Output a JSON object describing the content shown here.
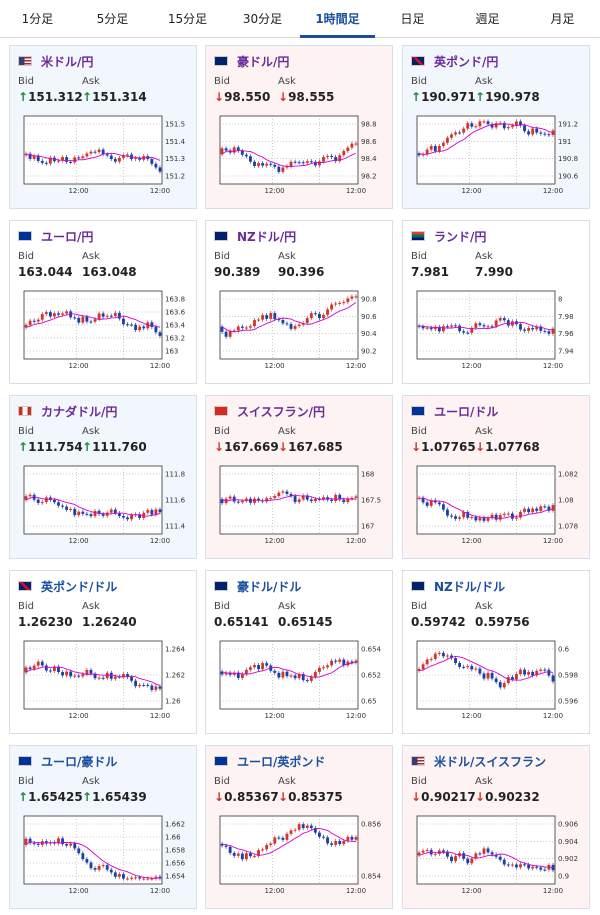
{
  "tabs": [
    {
      "label": "1分足",
      "active": false
    },
    {
      "label": "5分足",
      "active": false
    },
    {
      "label": "15分足",
      "active": false
    },
    {
      "label": "30分足",
      "active": false
    },
    {
      "label": "1時間足",
      "active": true
    },
    {
      "label": "日足",
      "active": false
    },
    {
      "label": "週足",
      "active": false
    },
    {
      "label": "月足",
      "active": false
    }
  ],
  "labels": {
    "bid": "Bid",
    "ask": "Ask"
  },
  "colors": {
    "up": "#1a8a3a",
    "down": "#d0362c",
    "accent": "#1a4fa0",
    "pair": "#6a2b99",
    "ma": "#d300d3",
    "candle_up": "#d0362c",
    "candle_down": "#1a3fa8"
  },
  "cards": [
    {
      "pair": "米ドル/円",
      "flag": "us-icon",
      "trend": "up",
      "bid": "151.312",
      "ask": "151.314",
      "x_label": "12:00",
      "x_label2": "12:00",
      "y_ticks": [
        "151.5",
        "151.4",
        "151.3",
        "151.2"
      ],
      "ylim": [
        151.15,
        151.6
      ]
    },
    {
      "pair": "豪ドル/円",
      "flag": "au-icon",
      "trend": "down",
      "bid": "98.550",
      "ask": "98.555",
      "x_label": "12:00",
      "x_label2": "12:00",
      "y_ticks": [
        "98.8",
        "98.6",
        "98.4",
        "98.2"
      ],
      "ylim": [
        98.1,
        98.9
      ]
    },
    {
      "pair": "英ポンド/円",
      "flag": "gb-icon",
      "trend": "up",
      "bid": "190.971",
      "ask": "190.978",
      "x_label": "12:00",
      "x_label2": "12:00",
      "y_ticks": [
        "191.2",
        "191",
        "190.8",
        "190.6"
      ],
      "ylim": [
        190.5,
        191.3
      ]
    },
    {
      "pair": "ユーロ/円",
      "flag": "eu-icon",
      "trend": "flat",
      "bid": "163.044",
      "ask": "163.048",
      "x_label": "12:00",
      "x_label2": "12:00",
      "y_ticks": [
        "163.8",
        "163.6",
        "163.4",
        "163.2",
        "163"
      ],
      "ylim": [
        162.95,
        163.9
      ]
    },
    {
      "pair": "NZドル/円",
      "flag": "nz-icon",
      "trend": "flat",
      "bid": "90.389",
      "ask": "90.396",
      "x_label": "12:00",
      "x_label2": "12:00",
      "y_ticks": [
        "90.8",
        "90.6",
        "90.4",
        "90.2"
      ],
      "ylim": [
        90.1,
        90.9
      ]
    },
    {
      "pair": "ランド/円",
      "flag": "za-icon",
      "trend": "flat",
      "bid": "7.981",
      "ask": "7.990",
      "x_label": "12:00",
      "x_label2": "12:00",
      "y_ticks": [
        "8",
        "7.98",
        "7.96",
        "7.94"
      ],
      "ylim": [
        7.92,
        8.01
      ]
    },
    {
      "pair": "カナダドル/円",
      "flag": "ca-icon",
      "trend": "up",
      "bid": "111.754",
      "ask": "111.760",
      "x_label": "12:00",
      "x_label2": "12:00",
      "y_ticks": [
        "111.8",
        "111.6",
        "111.4"
      ],
      "ylim": [
        111.25,
        111.9
      ]
    },
    {
      "pair": "スイスフラン/円",
      "flag": "ch-icon",
      "trend": "down",
      "bid": "167.669",
      "ask": "167.685",
      "x_label": "12:00",
      "x_label2": "12:00",
      "y_ticks": [
        "168",
        "167.5",
        "167"
      ],
      "ylim": [
        166.85,
        168.1
      ]
    },
    {
      "pair": "ユーロ/ドル",
      "flag": "eu-icon",
      "trend": "down",
      "bid": "1.07765",
      "ask": "1.07768",
      "x_label": "12:00",
      "x_label2": "12:00",
      "y_ticks": [
        "1.082",
        "1.08",
        "1.078"
      ],
      "ylim": [
        1.0772,
        1.0835
      ]
    },
    {
      "pair": "英ポンド/ドル",
      "flag": "gb-icon",
      "trend": "flat",
      "bid": "1.26230",
      "ask": "1.26240",
      "x_label": "12:00",
      "x_label2": "12:00",
      "y_ticks": [
        "1.264",
        "1.262",
        "1.26"
      ],
      "ylim": [
        1.2592,
        1.2655
      ]
    },
    {
      "pair": "豪ドル/ドル",
      "flag": "au-icon",
      "trend": "flat",
      "bid": "0.65141",
      "ask": "0.65145",
      "x_label": "12:00",
      "x_label2": "12:00",
      "y_ticks": [
        "0.654",
        "0.652",
        "0.65"
      ],
      "ylim": [
        0.6488,
        0.6545
      ]
    },
    {
      "pair": "NZドル/ドル",
      "flag": "nz-icon",
      "trend": "flat",
      "bid": "0.59742",
      "ask": "0.59756",
      "x_label": "12:00",
      "x_label2": "12:00",
      "y_ticks": [
        "0.6",
        "0.598",
        "0.596"
      ],
      "ylim": [
        0.5955,
        0.6005
      ]
    },
    {
      "pair": "ユーロ/豪ドル",
      "flag": "eu-icon",
      "trend": "up",
      "bid": "1.65425",
      "ask": "1.65439",
      "x_label": "12:00",
      "x_label2": "12:00",
      "y_ticks": [
        "1.662",
        "1.66",
        "1.658",
        "1.656",
        "1.654"
      ],
      "ylim": [
        1.6535,
        1.6625
      ]
    },
    {
      "pair": "ユーロ/英ポンド",
      "flag": "eu-icon",
      "trend": "down",
      "bid": "0.85367",
      "ask": "0.85375",
      "x_label": "12:00",
      "x_label2": "12:00",
      "y_ticks": [
        "0.856",
        "0.854"
      ],
      "ylim": [
        0.8535,
        0.8575
      ]
    },
    {
      "pair": "米ドル/スイスフラン",
      "flag": "us-icon",
      "trend": "down",
      "bid": "0.90217",
      "ask": "0.90232",
      "x_label": "12:00",
      "x_label2": "12:00",
      "y_ticks": [
        "0.906",
        "0.904",
        "0.902",
        "0.9"
      ],
      "ylim": [
        0.8995,
        0.9068
      ]
    }
  ]
}
